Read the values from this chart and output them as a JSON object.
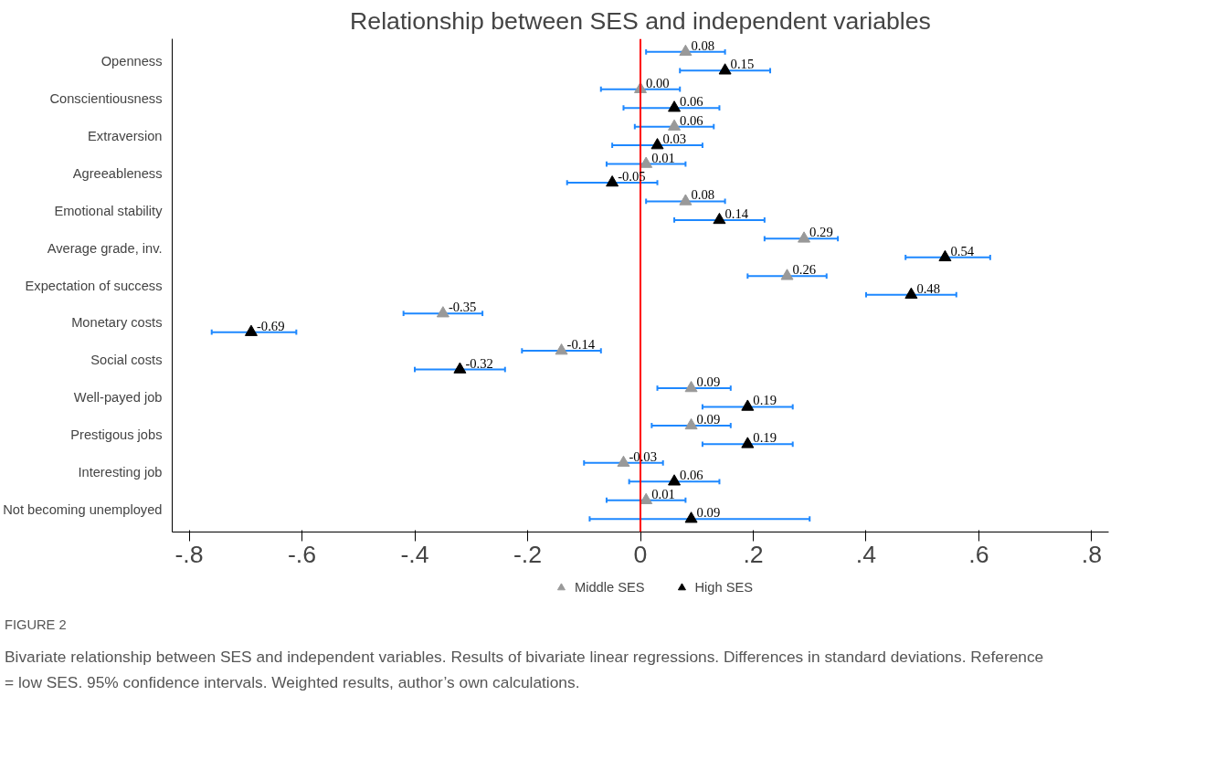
{
  "chart_data": {
    "type": "scatter",
    "orientation": "horizontal",
    "title": "Relationship between SES and independent variables",
    "categories": [
      "Openness",
      "Conscientiousness",
      "Extraversion",
      "Agreeableness",
      "Emotional stability",
      "Average grade, inv.",
      "Expectation of success",
      "Monetary costs",
      "Social costs",
      "Well-payed job",
      "Prestigous jobs",
      "Interesting job",
      "Not becoming unemployed"
    ],
    "series": [
      {
        "name": "Middle SES",
        "color": "#999999",
        "values": [
          0.08,
          0.0,
          0.06,
          0.01,
          0.08,
          0.29,
          0.26,
          -0.35,
          -0.14,
          0.09,
          0.09,
          -0.03,
          0.01
        ],
        "value_labels": [
          "0.08",
          "0.00",
          "0.06",
          "0.01",
          "0.08",
          "0.29",
          "0.26",
          "-0.35",
          "-0.14",
          "0.09",
          "0.09",
          "-0.03",
          "0.01"
        ],
        "errors": [
          [
            0.01,
            0.15
          ],
          [
            -0.07,
            0.07
          ],
          [
            -0.01,
            0.13
          ],
          [
            -0.06,
            0.08
          ],
          [
            0.01,
            0.15
          ],
          [
            0.22,
            0.35
          ],
          [
            0.19,
            0.33
          ],
          [
            -0.42,
            -0.28
          ],
          [
            -0.21,
            -0.07
          ],
          [
            0.03,
            0.16
          ],
          [
            0.02,
            0.16
          ],
          [
            -0.1,
            0.04
          ],
          [
            -0.06,
            0.08
          ]
        ]
      },
      {
        "name": "High SES",
        "color": "#000000",
        "values": [
          0.15,
          0.06,
          0.03,
          -0.05,
          0.14,
          0.54,
          0.48,
          -0.69,
          -0.32,
          0.19,
          0.19,
          0.06,
          0.09
        ],
        "value_labels": [
          "0.15",
          "0.06",
          "0.03",
          "-0.05",
          "0.14",
          "0.54",
          "0.48",
          "-0.69",
          "-0.32",
          "0.19",
          "0.19",
          "0.06",
          "0.09"
        ],
        "errors": [
          [
            0.07,
            0.23
          ],
          [
            -0.03,
            0.14
          ],
          [
            -0.05,
            0.11
          ],
          [
            -0.13,
            0.03
          ],
          [
            0.06,
            0.22
          ],
          [
            0.47,
            0.62
          ],
          [
            0.4,
            0.56
          ],
          [
            -0.76,
            -0.61
          ],
          [
            -0.4,
            -0.24
          ],
          [
            0.11,
            0.27
          ],
          [
            0.11,
            0.27
          ],
          [
            -0.02,
            0.14
          ],
          [
            -0.09,
            0.3
          ]
        ]
      }
    ],
    "xlim": [
      -0.83,
      0.83
    ],
    "xticks": [
      {
        "value": -0.8,
        "label": "-.8"
      },
      {
        "value": -0.6,
        "label": "-.6"
      },
      {
        "value": -0.4,
        "label": "-.4"
      },
      {
        "value": -0.2,
        "label": "-.2"
      },
      0,
      {
        "value": 0.2,
        "label": ".2"
      },
      {
        "value": 0.4,
        "label": ".4"
      },
      {
        "value": 0.6,
        "label": ".6"
      },
      {
        "value": 0.8,
        "label": ".8"
      }
    ],
    "ref_lines": [
      {
        "axis": "x",
        "value": 0,
        "color": "#ff0000"
      }
    ],
    "marker": "triangle",
    "legend": "bottom",
    "grid": false,
    "annotations": [
      "FIGURE 2",
      "Bivariate relationship between SES and independent variables. Results of bivariate linear regressions. Differences in standard deviations. Reference = low SES. 95% confidence intervals. Weighted results, author’s own calculations."
    ]
  }
}
